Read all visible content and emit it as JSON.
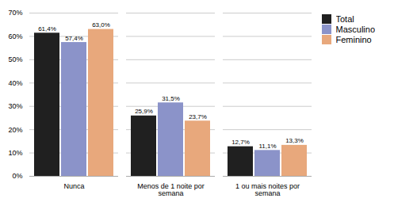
{
  "chart_data": {
    "type": "bar",
    "categories": [
      "Nunca",
      "Menos de 1 noite por\nsemana",
      "1 ou mais noites por\nsemana"
    ],
    "series": [
      {
        "name": "Total",
        "color": "#202020",
        "values": [
          61.4,
          25.9,
          12.7
        ],
        "value_labels": [
          "61,4%",
          "25,9%",
          "12,7%"
        ]
      },
      {
        "name": "Masculino",
        "color": "#8b93c9",
        "values": [
          57.4,
          31.5,
          11.1
        ],
        "value_labels": [
          "57,4%",
          "31,5%",
          "11,1%"
        ]
      },
      {
        "name": "Feminino",
        "color": "#e8a87c",
        "values": [
          63.0,
          23.7,
          13.3
        ],
        "value_labels": [
          "63,0%",
          "23,7%",
          "13,3%"
        ]
      }
    ],
    "ylim": [
      0,
      70
    ],
    "yticks": [
      {
        "value": 0,
        "label": "0%"
      },
      {
        "value": 10,
        "label": "10%"
      },
      {
        "value": 20,
        "label": "20%"
      },
      {
        "value": 30,
        "label": "30%"
      },
      {
        "value": 40,
        "label": "40%"
      },
      {
        "value": 50,
        "label": "50%"
      },
      {
        "value": 60,
        "label": "60%"
      },
      {
        "value": 70,
        "label": "70%"
      }
    ],
    "grid": true,
    "legend": "right",
    "data_labels": true
  }
}
